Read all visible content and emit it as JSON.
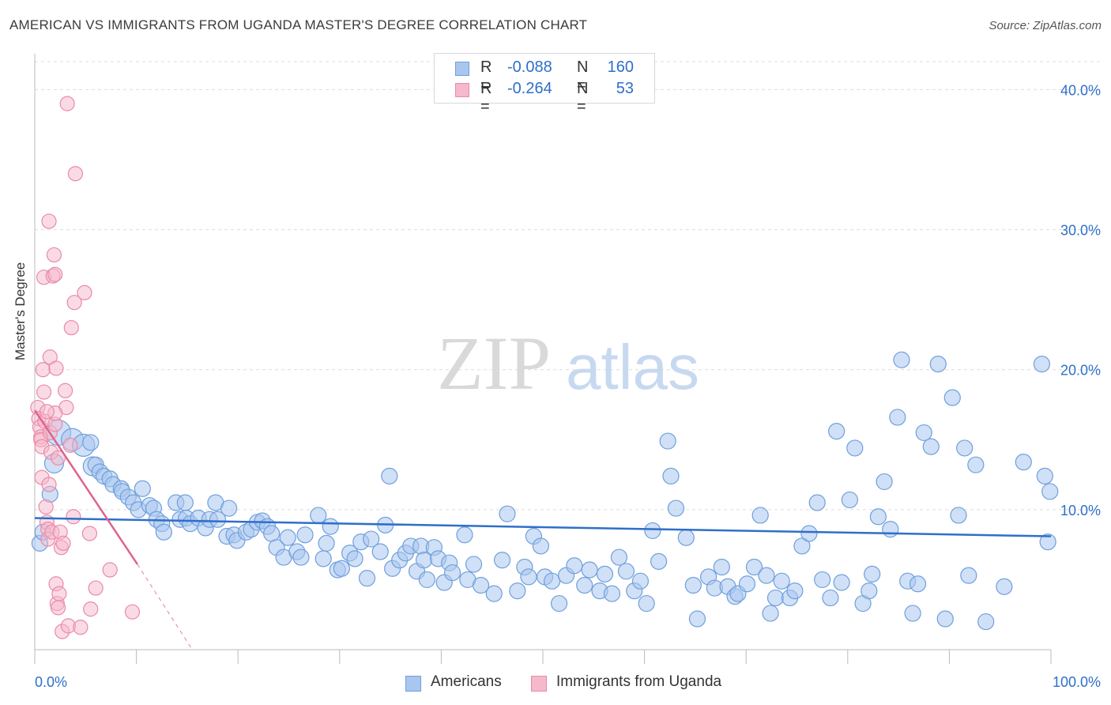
{
  "header": {
    "title": "AMERICAN VS IMMIGRANTS FROM UGANDA MASTER'S DEGREE CORRELATION CHART",
    "source": "Source: ZipAtlas.com"
  },
  "watermark": {
    "part1": "ZIP",
    "part2": "atlas"
  },
  "legend": {
    "rows": [
      {
        "r_label": "R =",
        "r_value": "-0.088",
        "n_label": "N =",
        "n_value": "160"
      },
      {
        "r_label": "R =",
        "r_value": "-0.264",
        "n_label": "N =",
        "n_value": "53"
      }
    ]
  },
  "bottom_legend": {
    "americans": "Americans",
    "uganda": "Immigrants from Uganda"
  },
  "colors": {
    "blue_fill": "#a9c6ee",
    "blue_stroke": "#6f9fdd",
    "blue_line": "#2f6fc9",
    "pink_fill": "#f6b8cb",
    "pink_stroke": "#e98aa7",
    "pink_line": "#e0628e",
    "tick_text": "#2f6fc9",
    "grid": "#dcdcdc"
  },
  "chart_data": {
    "type": "scatter",
    "title": "AMERICAN VS IMMIGRANTS FROM UGANDA MASTER'S DEGREE CORRELATION CHART",
    "ylabel": "Master's Degree",
    "xlabel": "",
    "xlim": [
      0,
      100
    ],
    "ylim": [
      0,
      42
    ],
    "x_tick_labels": [
      "0.0%",
      "100.0%"
    ],
    "y_ticks": [
      10,
      20,
      30,
      40
    ],
    "y_tick_labels": [
      "10.0%",
      "20.0%",
      "30.0%",
      "40.0%"
    ],
    "grid": true,
    "series": [
      {
        "name": "Americans",
        "r": -0.088,
        "n": 160,
        "trend": {
          "x": [
            0,
            100
          ],
          "y": [
            9.4,
            8.1
          ]
        },
        "points": [
          [
            0.5,
            7.6,
            10
          ],
          [
            0.8,
            8.4,
            10
          ],
          [
            1.5,
            11.1,
            10
          ],
          [
            1.9,
            13.3,
            12
          ],
          [
            2.3,
            15.5,
            16
          ],
          [
            3.7,
            15.0,
            14
          ],
          [
            4.8,
            14.6,
            14
          ],
          [
            5.5,
            14.8,
            10
          ],
          [
            5.7,
            13.1,
            12
          ],
          [
            6.0,
            13.2,
            10
          ],
          [
            6.4,
            12.7,
            10
          ],
          [
            6.8,
            12.4,
            10
          ],
          [
            7.4,
            12.2,
            10
          ],
          [
            7.7,
            11.8,
            10
          ],
          [
            8.5,
            11.5,
            10
          ],
          [
            8.6,
            11.3,
            10
          ],
          [
            9.2,
            10.9,
            10
          ],
          [
            9.7,
            10.5,
            10
          ],
          [
            10.2,
            10.0,
            10
          ],
          [
            10.6,
            11.5,
            10
          ],
          [
            11.3,
            10.3,
            10
          ],
          [
            11.7,
            10.1,
            10
          ],
          [
            12.0,
            9.3,
            10
          ],
          [
            12.5,
            9.0,
            10
          ],
          [
            12.7,
            8.4,
            10
          ],
          [
            13.9,
            10.5,
            10
          ],
          [
            14.3,
            9.3,
            10
          ],
          [
            14.8,
            10.5,
            10
          ],
          [
            14.9,
            9.4,
            10
          ],
          [
            15.3,
            9.0,
            10
          ],
          [
            16.1,
            9.4,
            10
          ],
          [
            16.8,
            8.7,
            10
          ],
          [
            17.2,
            9.3,
            10
          ],
          [
            17.8,
            10.5,
            10
          ],
          [
            18.0,
            9.3,
            10
          ],
          [
            18.9,
            8.1,
            10
          ],
          [
            19.1,
            10.1,
            10
          ],
          [
            19.6,
            8.2,
            10
          ],
          [
            19.9,
            7.8,
            10
          ],
          [
            20.8,
            8.4,
            10
          ],
          [
            21.3,
            8.6,
            10
          ],
          [
            21.9,
            9.1,
            10
          ],
          [
            22.4,
            9.2,
            10
          ],
          [
            22.9,
            8.8,
            10
          ],
          [
            23.3,
            8.3,
            10
          ],
          [
            23.8,
            7.3,
            10
          ],
          [
            24.5,
            6.6,
            10
          ],
          [
            24.9,
            8.0,
            10
          ],
          [
            25.8,
            7.0,
            10
          ],
          [
            26.2,
            6.6,
            10
          ],
          [
            26.6,
            8.2,
            10
          ],
          [
            27.9,
            9.6,
            10
          ],
          [
            28.4,
            6.5,
            10
          ],
          [
            28.7,
            7.6,
            10
          ],
          [
            29.1,
            8.8,
            10
          ],
          [
            29.8,
            5.7,
            10
          ],
          [
            30.2,
            5.8,
            10
          ],
          [
            31.0,
            6.9,
            10
          ],
          [
            31.5,
            6.5,
            10
          ],
          [
            32.1,
            7.7,
            10
          ],
          [
            32.7,
            5.1,
            10
          ],
          [
            33.1,
            7.9,
            10
          ],
          [
            34.0,
            7.0,
            10
          ],
          [
            34.5,
            8.9,
            10
          ],
          [
            34.9,
            12.4,
            10
          ],
          [
            35.2,
            5.8,
            10
          ],
          [
            35.9,
            6.4,
            10
          ],
          [
            36.5,
            6.9,
            10
          ],
          [
            37.0,
            7.4,
            10
          ],
          [
            37.6,
            5.6,
            10
          ],
          [
            38.0,
            7.4,
            10
          ],
          [
            38.3,
            6.4,
            10
          ],
          [
            38.6,
            5.0,
            10
          ],
          [
            39.3,
            7.3,
            10
          ],
          [
            39.7,
            6.5,
            10
          ],
          [
            40.3,
            4.8,
            10
          ],
          [
            40.8,
            6.2,
            10
          ],
          [
            41.1,
            5.5,
            10
          ],
          [
            42.3,
            8.2,
            10
          ],
          [
            42.6,
            5.0,
            10
          ],
          [
            43.2,
            6.1,
            10
          ],
          [
            43.9,
            4.6,
            10
          ],
          [
            45.2,
            4.0,
            10
          ],
          [
            46.0,
            6.4,
            10
          ],
          [
            46.5,
            9.7,
            10
          ],
          [
            47.5,
            4.2,
            10
          ],
          [
            48.2,
            5.9,
            10
          ],
          [
            48.6,
            5.2,
            10
          ],
          [
            49.1,
            8.1,
            10
          ],
          [
            49.8,
            7.4,
            10
          ],
          [
            50.2,
            5.2,
            10
          ],
          [
            50.9,
            4.9,
            10
          ],
          [
            51.6,
            3.3,
            10
          ],
          [
            52.3,
            5.3,
            10
          ],
          [
            53.1,
            6.0,
            10
          ],
          [
            54.1,
            4.6,
            10
          ],
          [
            54.6,
            5.7,
            10
          ],
          [
            55.6,
            4.2,
            10
          ],
          [
            56.1,
            5.4,
            10
          ],
          [
            56.8,
            4.0,
            10
          ],
          [
            57.5,
            6.6,
            10
          ],
          [
            58.2,
            5.6,
            10
          ],
          [
            59.0,
            4.2,
            10
          ],
          [
            59.6,
            4.9,
            10
          ],
          [
            60.2,
            3.3,
            10
          ],
          [
            60.8,
            8.5,
            10
          ],
          [
            61.4,
            6.3,
            10
          ],
          [
            62.3,
            14.9,
            10
          ],
          [
            62.6,
            12.4,
            10
          ],
          [
            63.1,
            10.1,
            10
          ],
          [
            64.1,
            8.0,
            10
          ],
          [
            64.8,
            4.6,
            10
          ],
          [
            65.2,
            2.2,
            10
          ],
          [
            66.3,
            5.2,
            10
          ],
          [
            66.9,
            4.4,
            10
          ],
          [
            67.6,
            5.9,
            10
          ],
          [
            68.2,
            4.5,
            10
          ],
          [
            68.9,
            3.8,
            10
          ],
          [
            69.2,
            4.0,
            10
          ],
          [
            70.1,
            4.7,
            10
          ],
          [
            70.8,
            5.9,
            10
          ],
          [
            71.4,
            9.6,
            10
          ],
          [
            72.0,
            5.3,
            10
          ],
          [
            72.4,
            2.6,
            10
          ],
          [
            72.9,
            3.7,
            10
          ],
          [
            73.5,
            4.9,
            10
          ],
          [
            74.3,
            3.7,
            10
          ],
          [
            74.8,
            4.2,
            10
          ],
          [
            75.5,
            7.4,
            10
          ],
          [
            76.2,
            8.3,
            10
          ],
          [
            77.0,
            10.5,
            10
          ],
          [
            77.5,
            5.0,
            10
          ],
          [
            78.3,
            3.7,
            10
          ],
          [
            78.9,
            15.6,
            10
          ],
          [
            79.4,
            4.8,
            10
          ],
          [
            80.2,
            10.7,
            10
          ],
          [
            80.7,
            14.4,
            10
          ],
          [
            81.5,
            3.3,
            10
          ],
          [
            82.1,
            4.2,
            10
          ],
          [
            82.4,
            5.4,
            10
          ],
          [
            83.0,
            9.5,
            10
          ],
          [
            83.6,
            12.0,
            10
          ],
          [
            84.2,
            8.6,
            10
          ],
          [
            84.9,
            16.6,
            10
          ],
          [
            85.3,
            20.7,
            10
          ],
          [
            85.9,
            4.9,
            10
          ],
          [
            86.4,
            2.6,
            10
          ],
          [
            86.9,
            4.7,
            10
          ],
          [
            87.5,
            15.5,
            10
          ],
          [
            88.2,
            14.5,
            10
          ],
          [
            88.9,
            20.4,
            10
          ],
          [
            89.6,
            2.2,
            10
          ],
          [
            90.3,
            18.0,
            10
          ],
          [
            90.9,
            9.6,
            10
          ],
          [
            91.5,
            14.4,
            10
          ],
          [
            91.9,
            5.3,
            10
          ],
          [
            92.6,
            13.2,
            10
          ],
          [
            93.6,
            2.0,
            10
          ],
          [
            95.4,
            4.5,
            10
          ],
          [
            97.3,
            13.4,
            10
          ],
          [
            99.1,
            20.4,
            10
          ],
          [
            99.4,
            12.4,
            10
          ],
          [
            99.7,
            7.7,
            10
          ],
          [
            99.9,
            11.3,
            10
          ]
        ]
      },
      {
        "name": "Immigrants from Uganda",
        "r": -0.264,
        "n": 53,
        "trend": {
          "x": [
            0,
            10.1
          ],
          "y": [
            17.1,
            6.1
          ],
          "dash_to": [
            15.5,
            0
          ]
        },
        "points": [
          [
            0.3,
            17.3
          ],
          [
            0.4,
            16.5
          ],
          [
            0.5,
            15.9
          ],
          [
            0.6,
            15.2
          ],
          [
            0.6,
            15.0
          ],
          [
            0.7,
            14.5
          ],
          [
            0.7,
            12.3
          ],
          [
            0.8,
            20.0
          ],
          [
            0.9,
            18.4
          ],
          [
            0.9,
            26.6
          ],
          [
            1.0,
            16.3
          ],
          [
            1.1,
            10.2
          ],
          [
            1.2,
            9.1
          ],
          [
            1.3,
            8.6
          ],
          [
            1.3,
            7.9
          ],
          [
            1.4,
            11.8
          ],
          [
            1.4,
            30.6
          ],
          [
            1.5,
            20.9
          ],
          [
            1.5,
            15.5
          ],
          [
            1.6,
            14.1
          ],
          [
            1.7,
            8.4
          ],
          [
            1.8,
            26.7
          ],
          [
            1.9,
            28.2
          ],
          [
            2.0,
            26.8
          ],
          [
            2.0,
            16.1
          ],
          [
            2.1,
            20.1
          ],
          [
            2.1,
            4.7
          ],
          [
            2.2,
            3.3
          ],
          [
            2.3,
            13.7
          ],
          [
            2.3,
            3.0
          ],
          [
            2.4,
            4.0
          ],
          [
            2.5,
            8.4
          ],
          [
            2.6,
            7.3
          ],
          [
            2.7,
            1.3
          ],
          [
            2.8,
            7.6
          ],
          [
            3.0,
            18.5
          ],
          [
            3.1,
            17.3
          ],
          [
            3.2,
            39.0
          ],
          [
            3.3,
            1.7
          ],
          [
            3.5,
            14.6
          ],
          [
            3.6,
            23.0
          ],
          [
            3.8,
            9.5
          ],
          [
            3.9,
            24.8
          ],
          [
            4.0,
            34.0
          ],
          [
            4.5,
            1.6
          ],
          [
            4.9,
            25.5
          ],
          [
            5.4,
            8.3
          ],
          [
            5.5,
            2.9
          ],
          [
            6.0,
            4.4
          ],
          [
            7.4,
            5.7
          ],
          [
            9.6,
            2.7
          ],
          [
            2.0,
            16.9
          ],
          [
            1.2,
            17.0
          ]
        ]
      }
    ]
  }
}
